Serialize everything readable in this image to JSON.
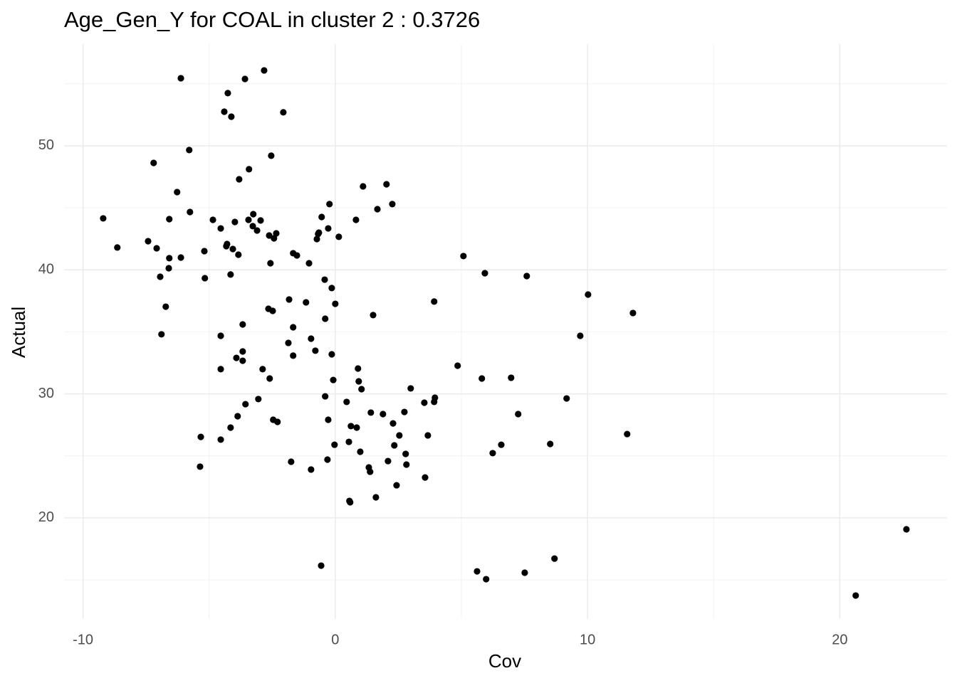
{
  "chart_data": {
    "type": "scatter",
    "title": "Age_Gen_Y for COAL in cluster 2 : 0.3726",
    "x_label": "Cov",
    "y_label": "Actual",
    "color": "#000000",
    "grid": true,
    "xlim": [
      -10.75,
      24.25
    ],
    "ylim": [
      11.85,
      58.2
    ],
    "xticks": [
      -10,
      0,
      10,
      20
    ],
    "yticks": [
      20,
      30,
      40,
      50
    ],
    "xminor": [
      -5,
      5,
      15
    ],
    "yminor": [
      15,
      25,
      35,
      45,
      55
    ],
    "x": [
      -9.2,
      -8.64,
      -7.42,
      -7.2,
      -7.08,
      -6.94,
      -6.89,
      -6.72,
      -6.6,
      -6.58,
      -6.58,
      -6.27,
      -6.12,
      -6.12,
      -5.79,
      -5.76,
      -5.33,
      -5.36,
      -5.19,
      -5.17,
      -4.85,
      -4.54,
      -4.54,
      -4.54,
      -4.54,
      -4.4,
      -4.32,
      -4.29,
      -4.26,
      -4.15,
      -4.15,
      -4.12,
      -4.06,
      -3.98,
      -3.92,
      -3.87,
      -3.84,
      -3.81,
      -3.67,
      -3.67,
      -3.67,
      -3.58,
      -3.56,
      -3.44,
      -3.42,
      -3.27,
      -3.25,
      -3.1,
      -3.05,
      -2.96,
      -2.88,
      -2.82,
      -2.65,
      -2.62,
      -2.6,
      -2.57,
      -2.54,
      -2.48,
      -2.46,
      -2.43,
      -2.34,
      -2.29,
      -2.06,
      -1.86,
      -1.83,
      -1.75,
      -1.67,
      -1.67,
      -1.67,
      -1.52,
      -1.16,
      -1.04,
      -0.96,
      -0.96,
      -0.79,
      -0.73,
      -0.68,
      -0.65,
      -0.56,
      -0.54,
      -0.42,
      -0.4,
      -0.4,
      -0.31,
      -0.28,
      -0.28,
      -0.23,
      -0.14,
      -0.14,
      -0.08,
      0.0,
      -0.03,
      0.14,
      0.45,
      0.54,
      0.56,
      0.59,
      0.62,
      0.82,
      0.85,
      0.9,
      0.93,
      0.99,
      1.04,
      1.1,
      1.33,
      1.38,
      1.41,
      1.5,
      1.61,
      1.67,
      1.89,
      2.03,
      2.09,
      2.26,
      2.29,
      2.34,
      2.43,
      2.54,
      2.74,
      2.79,
      2.82,
      2.99,
      3.53,
      3.56,
      3.67,
      3.92,
      3.92,
      3.95,
      4.85,
      5.08,
      5.62,
      5.81,
      5.93,
      5.98,
      6.24,
      6.58,
      6.97,
      7.25,
      7.51,
      7.59,
      8.52,
      8.69,
      9.17,
      9.71,
      10.02,
      11.57,
      11.8,
      20.63,
      22.64
    ],
    "values": [
      44.15,
      41.8,
      42.31,
      48.62,
      41.74,
      39.44,
      34.8,
      37.03,
      40.13,
      40.94,
      44.09,
      46.27,
      55.45,
      40.99,
      49.66,
      44.66,
      26.53,
      24.13,
      41.51,
      39.33,
      44.03,
      43.34,
      34.68,
      31.99,
      26.31,
      52.75,
      41.91,
      42.08,
      54.25,
      39.62,
      27.28,
      52.35,
      41.68,
      43.86,
      32.9,
      28.2,
      41.22,
      47.3,
      33.42,
      32.67,
      35.6,
      55.39,
      29.17,
      44.03,
      48.11,
      43.52,
      44.49,
      43.17,
      29.58,
      43.98,
      31.99,
      56.08,
      36.86,
      42.77,
      31.24,
      40.53,
      49.2,
      36.69,
      27.91,
      42.54,
      42.94,
      27.74,
      52.7,
      34.11,
      37.61,
      24.53,
      41.34,
      35.37,
      33.08,
      41.16,
      37.38,
      40.53,
      23.9,
      34.45,
      33.48,
      42.48,
      42.89,
      43.0,
      16.15,
      44.26,
      39.21,
      36.06,
      29.8,
      24.7,
      27.91,
      43.34,
      45.3,
      33.19,
      38.53,
      31.12,
      37.26,
      25.9,
      42.66,
      29.35,
      26.13,
      21.37,
      21.26,
      27.4,
      44.03,
      27.28,
      32.04,
      31.01,
      25.33,
      30.38,
      46.73,
      24.07,
      23.72,
      28.49,
      36.35,
      21.66,
      44.89,
      28.37,
      46.9,
      24.58,
      45.3,
      27.62,
      25.85,
      22.63,
      26.65,
      28.54,
      25.16,
      24.3,
      30.44,
      29.29,
      23.26,
      26.65,
      37.44,
      29.35,
      29.69,
      32.27,
      41.11,
      15.69,
      31.24,
      39.73,
      15.06,
      25.22,
      25.9,
      31.3,
      28.37,
      15.58,
      39.5,
      25.96,
      16.72,
      29.63,
      34.68,
      38.01,
      26.76,
      36.52,
      13.74,
      19.08
    ]
  }
}
